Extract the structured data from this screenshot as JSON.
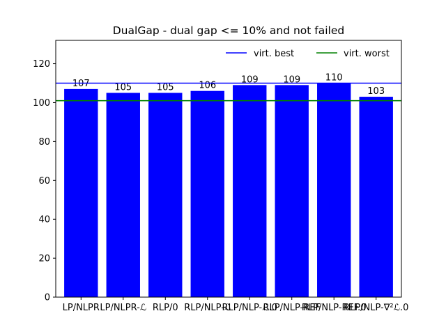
{
  "chart_data": {
    "type": "bar",
    "title": "DualGap - dual gap <= 10% and not failed",
    "xlabel": "",
    "ylabel": "",
    "categories": [
      "LP/NLPR",
      "LP/NLPR-ℒ",
      "RLP/0",
      "RLP/NLP-ℒ",
      "RLP/NLP-ℒ.0",
      "RLP/NLP-REF",
      "RLP/NLP-REF.0",
      "RLP/NLP-∇²ℒ.0"
    ],
    "values": [
      107,
      105,
      105,
      106,
      109,
      109,
      110,
      103
    ],
    "bar_color": "#0000ff",
    "ylim": [
      0,
      132
    ],
    "yticks": [
      0,
      20,
      40,
      60,
      80,
      100,
      120
    ],
    "grid": false,
    "legend_position": "top-right",
    "reference_lines": [
      {
        "name": "virt. best",
        "value": 110,
        "color": "#0000ff"
      },
      {
        "name": "virt. worst",
        "value": 101,
        "color": "#008000"
      }
    ]
  }
}
